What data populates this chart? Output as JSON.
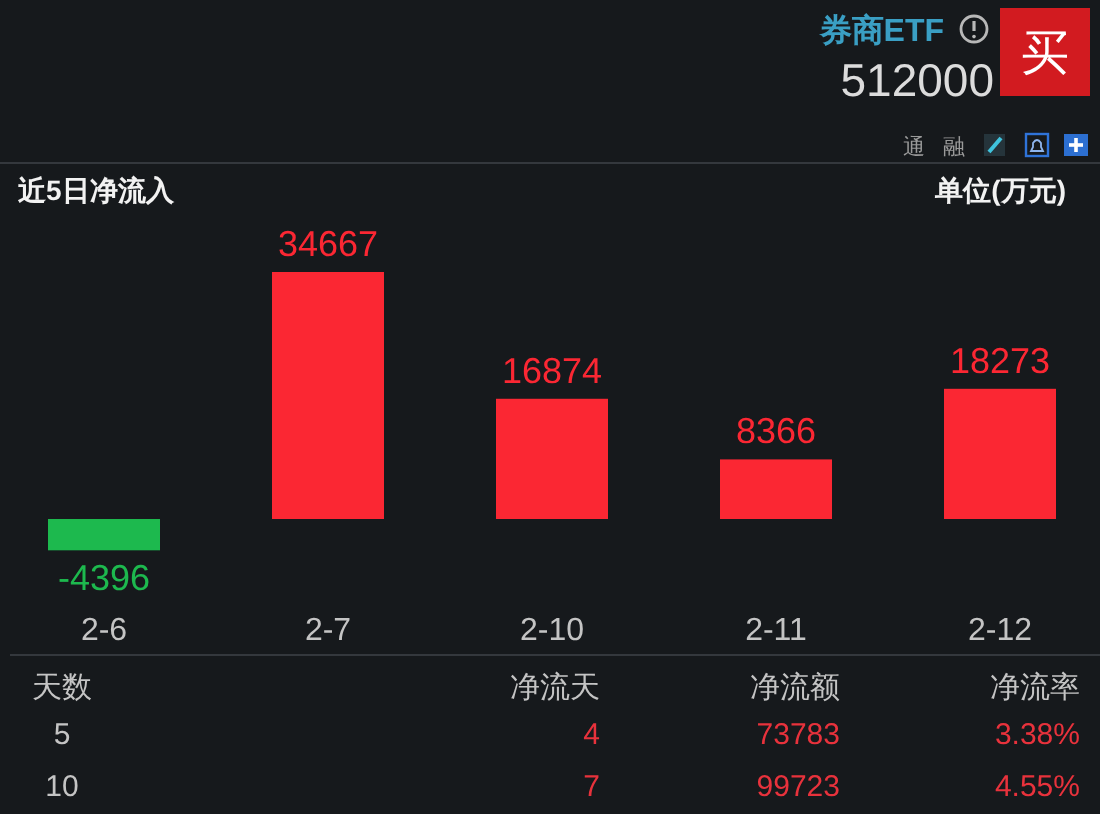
{
  "chart_data": [
    {
      "type": "other",
      "title": "券商ETF",
      "subtitle": "512000",
      "annotations": [
        "买",
        "通",
        "融"
      ]
    },
    {
      "type": "bar",
      "title": "近5日净流入",
      "ylabel": "单位(万元)",
      "categories": [
        "2-6",
        "2-7",
        "2-10",
        "2-11",
        "2-12"
      ],
      "values": [
        -4396,
        34667,
        16874,
        8366,
        18273
      ],
      "colors": [
        "#1db94e",
        "#fb2733",
        "#fb2733",
        "#fb2733",
        "#fb2733"
      ],
      "data_labels": true
    },
    {
      "type": "other",
      "annotations": [
        "天数",
        "净流天",
        "净流额",
        "净流率",
        "5",
        "4",
        "73783",
        "3.38%",
        "10",
        "7",
        "99723",
        "4.55%"
      ]
    }
  ]
}
